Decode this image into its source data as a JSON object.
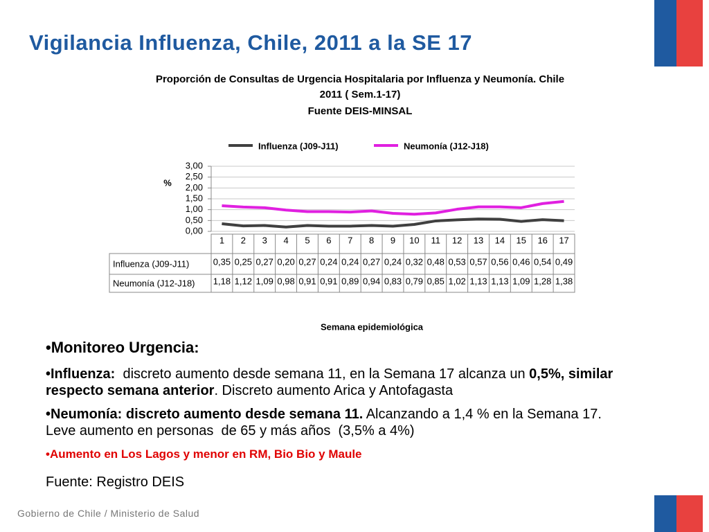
{
  "slide": {
    "title": "Vigilancia Influenza, Chile, 2011 a la SE 17",
    "heading": "•Monitoreo Urgencia:",
    "paragraphs": [
      [
        {
          "text": "•Influenza:",
          "bold": true
        },
        {
          "text": "  discreto aumento desde semana 11, en la Semana 17 alcanza un ",
          "bold": false
        },
        {
          "text": "0,5%, similar respecto semana anterior",
          "bold": true
        },
        {
          "text": ". Discreto aumento Arica y Antofagasta",
          "bold": false
        }
      ],
      [
        {
          "text": "•Neumonía: discreto aumento desde semana 11.",
          "bold": true
        },
        {
          "text": " Alcanzando a 1,4 % en la Semana 17. Leve aumento en personas  de 65 y más años  (3,5% a 4%)",
          "bold": false
        }
      ]
    ],
    "note": "•Aumento en Los Lagos y menor en RM, Bio Bio y Maule",
    "source": "Fuente: Registro DEIS",
    "footer": "Gobierno de Chile / Ministerio de Salud"
  },
  "chart_data": {
    "type": "line",
    "title": "Proporción de Consultas de Urgencia Hospitalaria por Influenza y Neumonía. Chile 2011 ( Sem.1-17)",
    "subtitle": "Fuente DEIS-MINSAL",
    "y_label": "%",
    "x_label": "Semana epidemiológica",
    "categories": [
      "1",
      "2",
      "3",
      "4",
      "5",
      "6",
      "7",
      "8",
      "9",
      "10",
      "11",
      "12",
      "13",
      "14",
      "15",
      "16",
      "17"
    ],
    "series": [
      {
        "name": "Influenza (J09-J11)",
        "color": "#404040",
        "values": [
          0.35,
          0.25,
          0.27,
          0.2,
          0.27,
          0.24,
          0.24,
          0.27,
          0.24,
          0.32,
          0.48,
          0.53,
          0.57,
          0.56,
          0.46,
          0.54,
          0.49
        ],
        "value_labels": [
          "0,35",
          "0,25",
          "0,27",
          "0,20",
          "0,27",
          "0,24",
          "0,24",
          "0,27",
          "0,24",
          "0,32",
          "0,48",
          "0,53",
          "0,57",
          "0,56",
          "0,46",
          "0,54",
          "0,49"
        ]
      },
      {
        "name": "Neumonía (J12-J18)",
        "color": "#e020e0",
        "values": [
          1.18,
          1.12,
          1.09,
          0.98,
          0.91,
          0.91,
          0.89,
          0.94,
          0.83,
          0.79,
          0.85,
          1.02,
          1.13,
          1.13,
          1.09,
          1.28,
          1.38
        ],
        "value_labels": [
          "1,18",
          "1,12",
          "1,09",
          "0,98",
          "0,91",
          "0,91",
          "0,89",
          "0,94",
          "0,83",
          "0,79",
          "0,85",
          "1,02",
          "1,13",
          "1,13",
          "1,09",
          "1,28",
          "1,38"
        ]
      }
    ],
    "ylim": [
      0,
      3
    ],
    "yticks": [
      {
        "value": 0,
        "label": "0,00"
      },
      {
        "value": 0.5,
        "label": "0,50"
      },
      {
        "value": 1,
        "label": "1,00"
      },
      {
        "value": 1.5,
        "label": "1,50"
      },
      {
        "value": 2,
        "label": "2,00"
      },
      {
        "value": 2.5,
        "label": "2,50"
      },
      {
        "value": 3,
        "label": "3,00"
      }
    ],
    "grid": true
  }
}
